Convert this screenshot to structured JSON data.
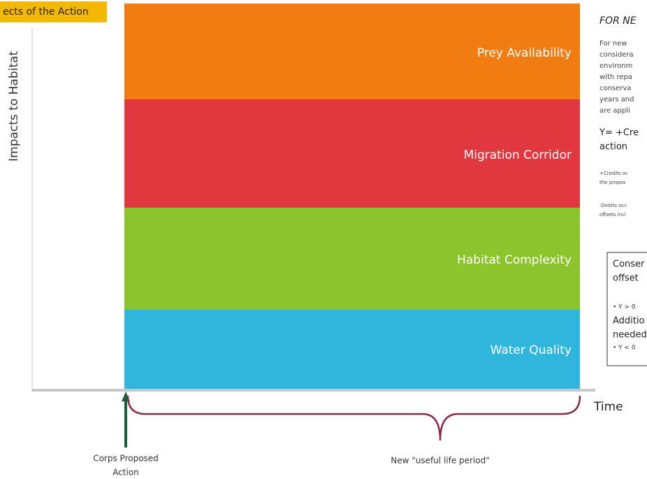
{
  "header": {
    "title": "ects of the Action"
  },
  "axes": {
    "y_label": "Impacts to Habitat",
    "x_label": "Time"
  },
  "bands": [
    {
      "label": "Prey Availability"
    },
    {
      "label": "Migration Corridor"
    },
    {
      "label": "Habitat Complexity"
    },
    {
      "label": "Water Quality"
    }
  ],
  "timeline": {
    "start_label": [
      "Corps Proposed",
      "Action"
    ],
    "period_label": "New \"useful life period\""
  },
  "side_panel": {
    "heading": "FOR NE",
    "paragraph": [
      "For new",
      "considera",
      "environm",
      "with repa",
      "conserva",
      "years and",
      "are appli"
    ],
    "formula": [
      "Y= +Cre",
      "action"
    ],
    "credits_note": [
      "+Credits oc",
      "the propos"
    ],
    "debits_note": [
      "-Debits occ",
      "offsets incl"
    ],
    "box": [
      "Conser",
      "offset",
      "• Y > 0",
      "Additio",
      "needed",
      "• Y < 0"
    ]
  }
}
